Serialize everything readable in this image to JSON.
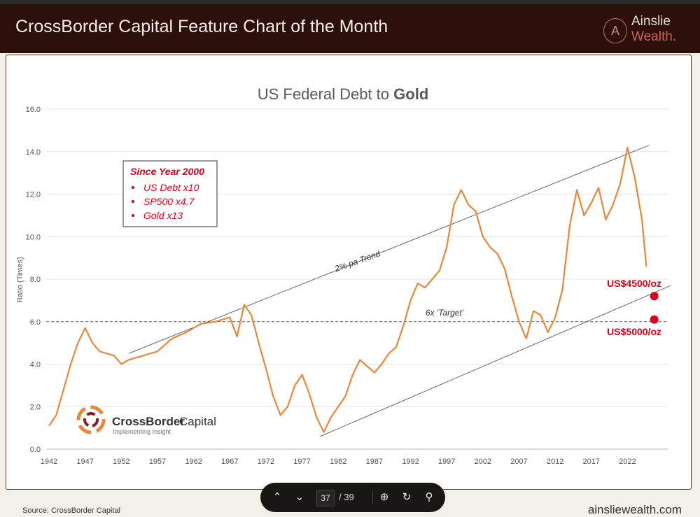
{
  "header": {
    "title": "CrossBorder Capital Feature Chart of the Month",
    "logo_line1": "Ainslie",
    "logo_line2": "Wealth."
  },
  "footer": {
    "source": "Source: CrossBorder Capital",
    "website": "ainsliewealth.com"
  },
  "toolbar": {
    "current_page": "37",
    "total_pages": "/ 39",
    "icons": [
      "chevron-up-icon",
      "chevron-down-icon",
      "zoom-in-icon",
      "rotate-icon",
      "search-icon"
    ]
  },
  "colors": {
    "line": "#e8873a",
    "annotation": "#d9001b",
    "header_bg": "#2d100c"
  },
  "chart_data": {
    "type": "line",
    "title_prefix": "US Federal Debt to ",
    "title_bold": "Gold",
    "ylabel": "Ratio (Times)",
    "ylim": [
      0,
      16
    ],
    "yticks": [
      "0.0",
      "2.0",
      "4.0",
      "6.0",
      "8.0",
      "10.0",
      "12.0",
      "14.0",
      "16.0"
    ],
    "xticks": [
      "1942",
      "1947",
      "1952",
      "1957",
      "1962",
      "1967",
      "1972",
      "1977",
      "1982",
      "1987",
      "1992",
      "1997",
      "2002",
      "2007",
      "2012",
      "2017",
      "2022"
    ],
    "xlim": [
      1942,
      2027.5
    ],
    "series": [
      {
        "name": "US Debt / Gold",
        "x": [
          1942,
          1943,
          1944,
          1945,
          1946,
          1947,
          1948,
          1949,
          1950,
          1951,
          1952,
          1953,
          1955,
          1957,
          1959,
          1961,
          1963,
          1965,
          1967,
          1968,
          1969,
          1970,
          1971,
          1972,
          1973,
          1974,
          1975,
          1976,
          1977,
          1978,
          1979,
          1980,
          1981,
          1982,
          1983,
          1984,
          1985,
          1986,
          1987,
          1988,
          1989,
          1990,
          1991,
          1992,
          1993,
          1994,
          1995,
          1996,
          1997,
          1998,
          1999,
          2000,
          2001,
          2002,
          2003,
          2004,
          2005,
          2006,
          2007,
          2008,
          2009,
          2010,
          2011,
          2012,
          2013,
          2014,
          2015,
          2016,
          2017,
          2018,
          2019,
          2020,
          2021,
          2022,
          2023,
          2024,
          2024.6
        ],
        "values": [
          1.1,
          1.6,
          2.8,
          4.0,
          5.0,
          5.7,
          5.0,
          4.6,
          4.5,
          4.4,
          4.0,
          4.2,
          4.4,
          4.6,
          5.2,
          5.5,
          5.9,
          6.0,
          6.2,
          5.3,
          6.8,
          6.3,
          5.0,
          3.8,
          2.5,
          1.6,
          2.0,
          3.0,
          3.5,
          2.6,
          1.5,
          0.8,
          1.5,
          2.0,
          2.5,
          3.5,
          4.2,
          3.9,
          3.6,
          4.0,
          4.5,
          4.8,
          5.8,
          7.0,
          7.8,
          7.6,
          8.0,
          8.4,
          9.5,
          11.5,
          12.2,
          11.5,
          11.2,
          10.0,
          9.5,
          9.2,
          8.5,
          7.2,
          6.0,
          5.2,
          6.5,
          6.3,
          5.5,
          6.2,
          7.5,
          10.5,
          12.2,
          11.0,
          11.6,
          12.3,
          10.8,
          11.5,
          12.5,
          14.2,
          12.8,
          10.8,
          8.6
        ]
      }
    ],
    "trend_upper": {
      "label": "2% pa Trend",
      "x": [
        1953,
        2025
      ],
      "y": [
        4.5,
        14.3
      ]
    },
    "trend_lower": {
      "x": [
        1979.5,
        2028
      ],
      "y": [
        0.6,
        7.7
      ]
    },
    "target_line": {
      "label": "6x 'Target'",
      "y": 6.0
    },
    "markers": [
      {
        "label": "US$4500/oz",
        "x": 2025.7,
        "y": 7.2
      },
      {
        "label": "US$5000/oz",
        "x": 2025.7,
        "y": 6.1
      }
    ],
    "inset": {
      "heading": "Since Year 2000",
      "items": [
        "US Debt x10",
        "SP500 x4.7",
        "Gold x13"
      ]
    },
    "brand": {
      "name_a": "CrossBorder",
      "name_b": "Capital",
      "tagline": "Implementing Insight"
    }
  }
}
